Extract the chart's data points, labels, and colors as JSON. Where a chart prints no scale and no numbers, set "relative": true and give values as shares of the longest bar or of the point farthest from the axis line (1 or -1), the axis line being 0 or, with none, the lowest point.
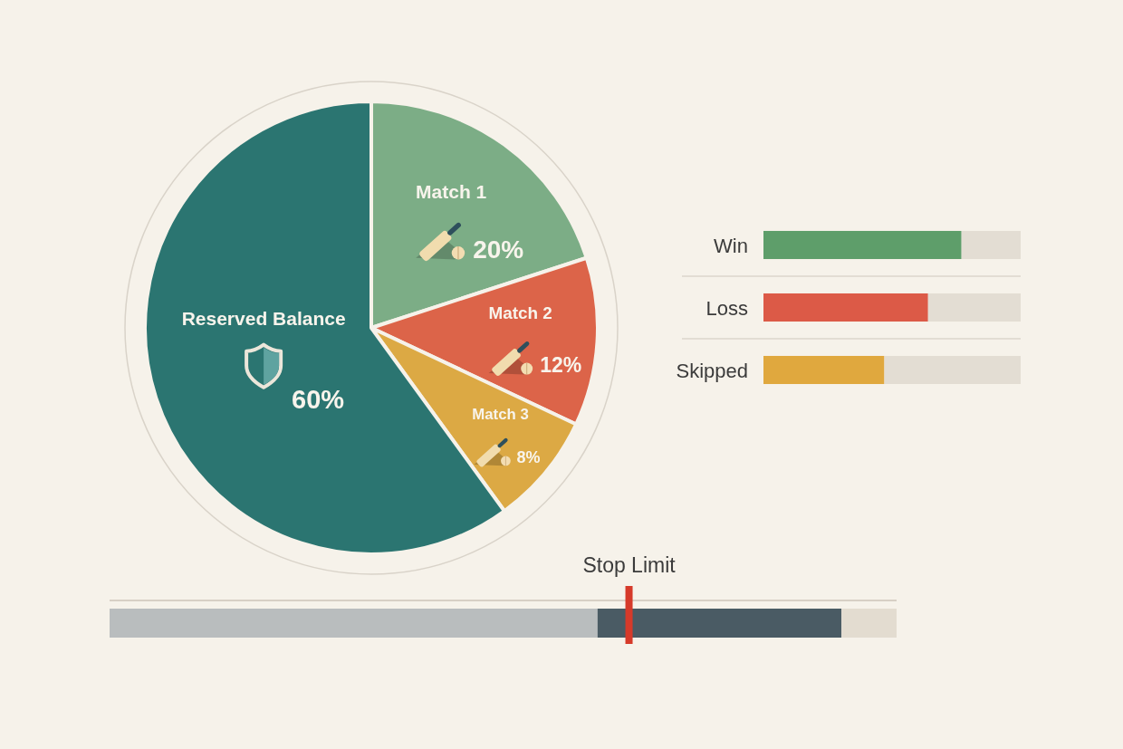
{
  "chart_data": [
    {
      "type": "pie",
      "categories": [
        "Match 1",
        "Match 2",
        "Match 3",
        "Reserved Balance"
      ],
      "values": [
        20,
        12,
        8,
        60
      ],
      "colors": [
        "#7cad86",
        "#dc6449",
        "#dca944",
        "#2b7571"
      ],
      "value_labels": [
        "20%",
        "12%",
        "8%",
        "60%"
      ]
    },
    {
      "type": "bar",
      "orientation": "horizontal",
      "stacked": true,
      "relative": true,
      "grid": "y",
      "categories": [
        "Win",
        "Loss",
        "Skipped"
      ],
      "series": [
        {
          "colors": [
            "#5e9e6a",
            "#dc5a47",
            "#e0a83e"
          ],
          "values": [
            0.77,
            0.64,
            0.47
          ]
        },
        {
          "color": "#e3ddd3",
          "values": [
            0.23,
            0.36,
            0.53
          ]
        }
      ]
    },
    {
      "type": "bar",
      "orientation": "horizontal",
      "stacked": true,
      "relative": true,
      "categories": [
        null
      ],
      "series": [
        {
          "color": "#b9bdbe",
          "values": [
            0.62
          ]
        },
        {
          "color": "#4a5b64",
          "values": [
            0.31
          ]
        },
        {
          "color": "#e3dcd0",
          "values": [
            0.07
          ]
        }
      ],
      "ref_lines": [
        {
          "axis": "x",
          "value": 0.66,
          "label": "Stop Limit",
          "color": "#d63a2a"
        }
      ]
    }
  ]
}
